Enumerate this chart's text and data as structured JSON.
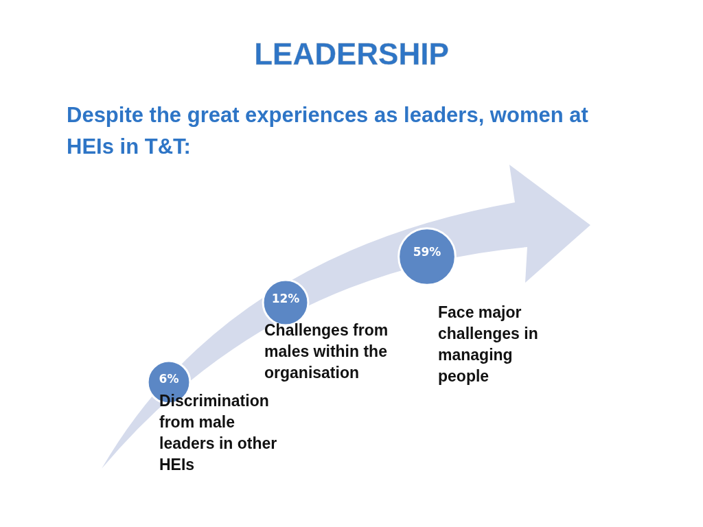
{
  "chart_data": {
    "type": "other",
    "title": "LEADERSHIP",
    "subtitle": "Despite the great experiences as leaders, women at HEIs in T&T:",
    "categories": [
      "Discrimination from male leaders in other HEIs",
      "Challenges from males within the organisation",
      "Face major challenges in managing people"
    ],
    "values": [
      6,
      12,
      59
    ],
    "value_labels": [
      "6%",
      "12%",
      "59%"
    ],
    "color": "#5b87c5"
  }
}
